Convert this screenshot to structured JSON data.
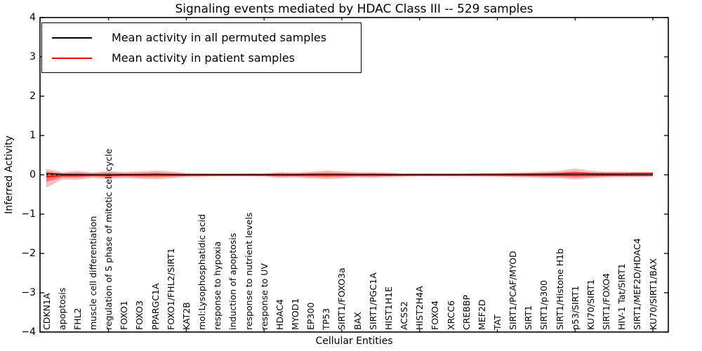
{
  "title": "Signaling events mediated by HDAC Class III -- 529 samples",
  "axes": {
    "ylabel": "Inferred Activity",
    "xlabel": "Cellular Entities",
    "yticks": [
      {
        "v": 4,
        "label": "4"
      },
      {
        "v": 3,
        "label": "3"
      },
      {
        "v": 2,
        "label": "2"
      },
      {
        "v": 1,
        "label": "1"
      },
      {
        "v": 0,
        "label": "0"
      },
      {
        "v": -1,
        "label": "−1"
      },
      {
        "v": -2,
        "label": "−2"
      },
      {
        "v": -3,
        "label": "−3"
      },
      {
        "v": -4,
        "label": "−4"
      }
    ]
  },
  "legend": {
    "entries": [
      {
        "label": "Mean activity in all permuted samples",
        "color": "#000000"
      },
      {
        "label": "Mean activity in patient samples",
        "color": "#ff0000"
      }
    ]
  },
  "colors": {
    "permuted_line": "#000000",
    "patient_line": "#ff0000",
    "band_outer": "rgba(255,0,0,0.25)",
    "band_inner": "rgba(255,0,0,0.38)",
    "permuted_band": "rgba(0,0,0,0.16)",
    "frame": "#000000"
  },
  "chart_data": {
    "type": "line",
    "title": "Signaling events mediated by HDAC Class III -- 529 samples",
    "xlabel": "Cellular Entities",
    "ylabel": "Inferred Activity",
    "ylim": [
      -4,
      4
    ],
    "legend_position": "upper left",
    "grid": false,
    "categories": [
      "CDKN1A",
      "apoptosis",
      "FHL2",
      "muscle cell differentiation",
      "regulation of S phase of mitotic cell cycle",
      "FOXO1",
      "FOXO3",
      "PPARGC1A",
      "FOXO1/FHL2/SIRT1",
      "KAT2B",
      "mol:Lysophosphatidic acid",
      "response to hypoxia",
      "induction of apoptosis",
      "response to nutrient levels",
      "response to UV",
      "HDAC4",
      "MYOD1",
      "EP300",
      "TP53",
      "SIRT1/FOXO3a",
      "BAX",
      "SIRT1/PGC1A",
      "HIST1H1E",
      "ACSS2",
      "HIST2H4A",
      "FOXO4",
      "XRCC6",
      "CREBBP",
      "MEF2D",
      "TAT",
      "SIRT1/PCAF/MYOD",
      "SIRT1",
      "SIRT1/p300",
      "SIRT1/Histone H1b",
      "p53/SIRT1",
      "KU70/SIRT1",
      "SIRT1/FOXO4",
      "HIV-1 Tat/SIRT1",
      "SIRT1/MEF2D/HDAC4",
      "KU70/SIRT1/BAX"
    ],
    "series": [
      {
        "name": "Mean activity in all permuted samples",
        "color": "#000000",
        "values": [
          0.03,
          0.01,
          0.005,
          0,
          0,
          0,
          0,
          0,
          0,
          0,
          0,
          0,
          0,
          0,
          0,
          0,
          0,
          0,
          0,
          0,
          0,
          0,
          0,
          0,
          0,
          0,
          0,
          0,
          0,
          0,
          0,
          0,
          0,
          0,
          0,
          0,
          0,
          0,
          0,
          0
        ]
      },
      {
        "name": "Mean activity in patient samples",
        "color": "#ff0000",
        "values": [
          -0.05,
          -0.02,
          -0.015,
          -0.005,
          -0.01,
          0,
          0,
          0.01,
          0,
          0,
          0,
          0,
          0,
          0,
          0,
          0.005,
          0,
          0.01,
          0.01,
          0.01,
          0.005,
          0.01,
          0,
          0,
          0,
          0,
          0,
          0.005,
          0.01,
          0.01,
          0.015,
          0.02,
          0.025,
          0.03,
          0.04,
          0.03,
          0.03,
          0.03,
          0.035,
          0.04
        ]
      }
    ],
    "patient_band": {
      "upper": [
        0.15,
        0.07,
        0.1,
        0.06,
        0.1,
        0.07,
        0.09,
        0.11,
        0.09,
        0.05,
        0.04,
        0.035,
        0.035,
        0.04,
        0.04,
        0.07,
        0.06,
        0.08,
        0.11,
        0.09,
        0.07,
        0.07,
        0.06,
        0.04,
        0.04,
        0.04,
        0.04,
        0.04,
        0.045,
        0.05,
        0.06,
        0.07,
        0.08,
        0.1,
        0.16,
        0.1,
        0.08,
        0.08,
        0.08,
        0.07
      ],
      "lower": [
        -0.33,
        -0.12,
        -0.13,
        -0.08,
        -0.11,
        -0.08,
        -0.1,
        -0.11,
        -0.09,
        -0.06,
        -0.05,
        -0.04,
        -0.04,
        -0.04,
        -0.045,
        -0.08,
        -0.07,
        -0.09,
        -0.11,
        -0.09,
        -0.07,
        -0.08,
        -0.06,
        -0.05,
        -0.04,
        -0.04,
        -0.04,
        -0.04,
        -0.045,
        -0.05,
        -0.06,
        -0.07,
        -0.08,
        -0.09,
        -0.12,
        -0.09,
        -0.07,
        -0.06,
        -0.06,
        -0.05
      ]
    },
    "permuted_band": {
      "upper": 0.035,
      "lower": -0.04
    },
    "zero_line": true
  }
}
